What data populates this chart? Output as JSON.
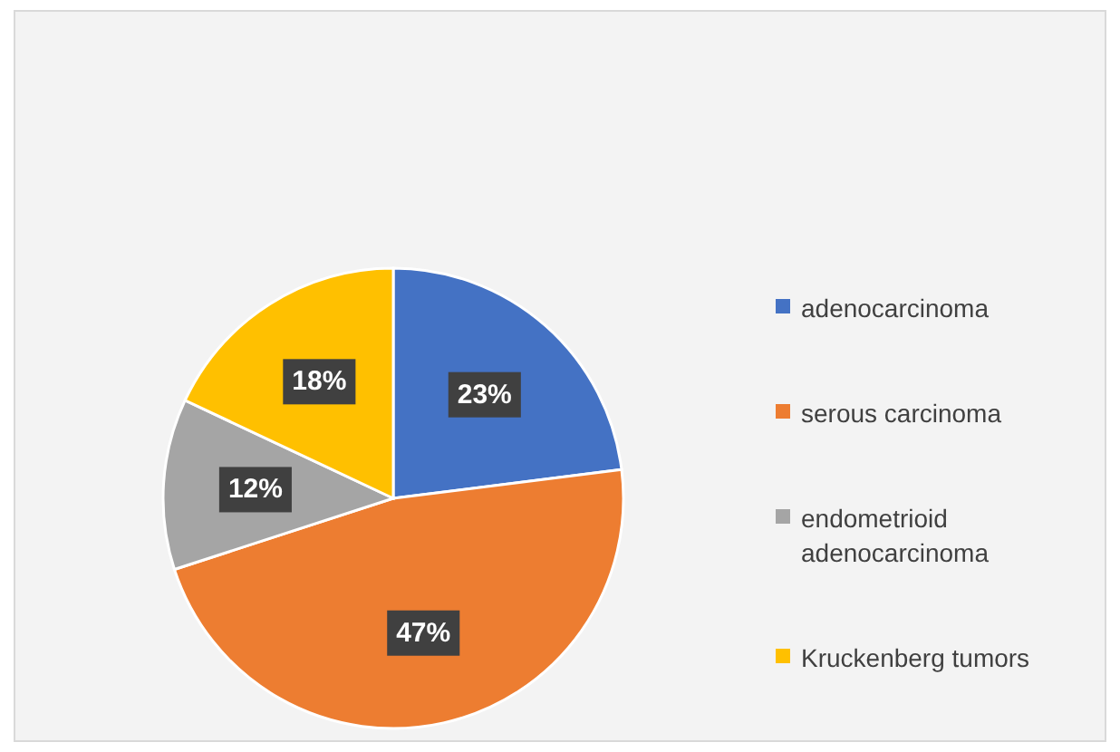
{
  "chart_data": {
    "type": "pie",
    "categories": [
      "adenocarcinoma",
      "serous carcinoma",
      "endometrioid adenocarcinoma",
      "Kruckenberg tumors"
    ],
    "values": [
      23,
      47,
      12,
      18
    ],
    "colors": [
      "#4472c4",
      "#ed7d31",
      "#a5a5a5",
      "#ffc000"
    ],
    "value_labels": [
      "23%",
      "47%",
      "12%",
      "18%"
    ],
    "legend": "right"
  }
}
